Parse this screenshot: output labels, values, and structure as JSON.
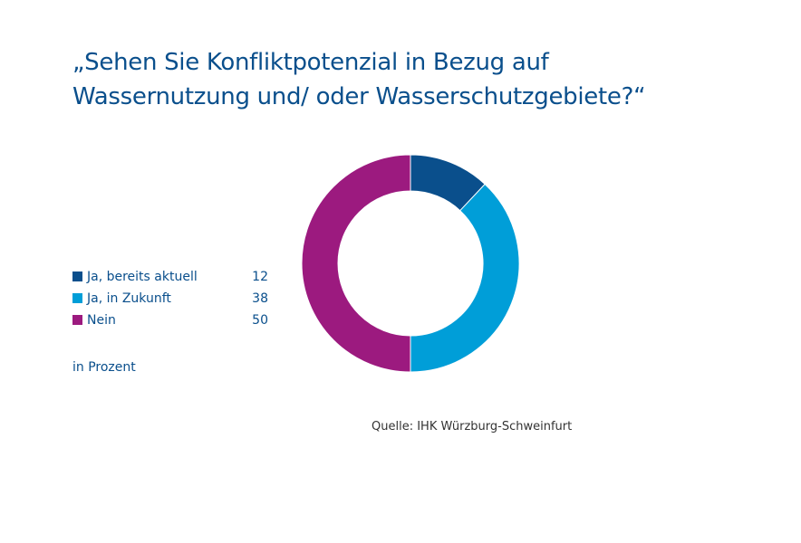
{
  "title": {
    "line1": "„Sehen Sie Konfliktpotenzial in Bezug auf",
    "line2": "Wassernutzung und/ oder Wasserschutzgebiete?“"
  },
  "unit_label": "in Prozent",
  "source": "Quelle: IHK Würzburg-Schweinfurt",
  "chart_data": {
    "type": "pie",
    "donut": true,
    "legend_position": "left",
    "grid": false,
    "slices": [
      {
        "label": "Ja, bereits aktuell",
        "value": 12,
        "display_value": "12",
        "color": "#0a4f8c"
      },
      {
        "label": "Ja, in Zukunft",
        "value": 38,
        "display_value": "38",
        "color": "#009ed8"
      },
      {
        "label": "Nein",
        "value": 50,
        "display_value": "50",
        "color": "#9c1a7f"
      }
    ]
  }
}
